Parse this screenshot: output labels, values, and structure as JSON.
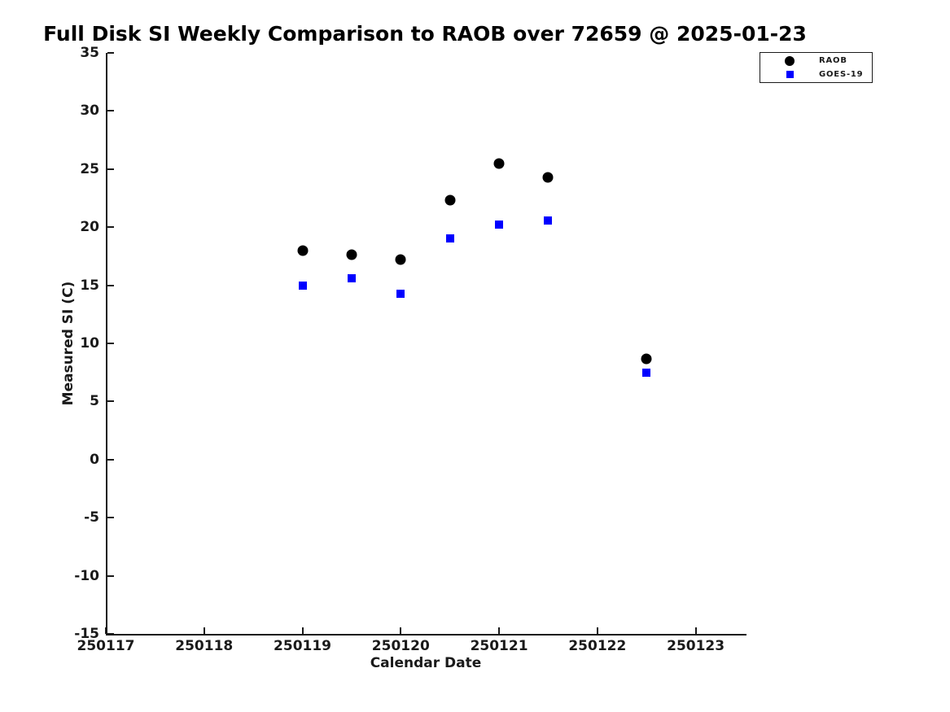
{
  "chart_data": {
    "type": "scatter",
    "title": "Full Disk SI Weekly Comparison to RAOB over 72659 @ 2025-01-23",
    "xlabel": "Calendar Date",
    "ylabel": "Measured SI (C)",
    "xlim": [
      250117,
      250123.5
    ],
    "ylim": [
      -15,
      35
    ],
    "xticks": [
      250117,
      250118,
      250119,
      250120,
      250121,
      250122,
      250123
    ],
    "yticks": [
      -15,
      -10,
      -5,
      0,
      5,
      10,
      15,
      20,
      25,
      30,
      35
    ],
    "grid": false,
    "legend": {
      "position": "outside-top-right",
      "entries": [
        "RAOB",
        "GOES-19"
      ]
    },
    "series": [
      {
        "name": "RAOB",
        "marker": "circle",
        "color": "#000000",
        "x": [
          250119.0,
          250119.5,
          250120.0,
          250120.5,
          250121.0,
          250121.5,
          250122.5
        ],
        "y": [
          18.0,
          17.6,
          17.2,
          22.3,
          25.5,
          24.3,
          8.7
        ]
      },
      {
        "name": "GOES-19",
        "marker": "square",
        "color": "#0000ff",
        "x": [
          250119.0,
          250119.5,
          250120.0,
          250120.5,
          250121.0,
          250121.5,
          250122.5
        ],
        "y": [
          15.0,
          15.6,
          14.3,
          19.0,
          20.2,
          20.6,
          7.5
        ]
      }
    ]
  }
}
